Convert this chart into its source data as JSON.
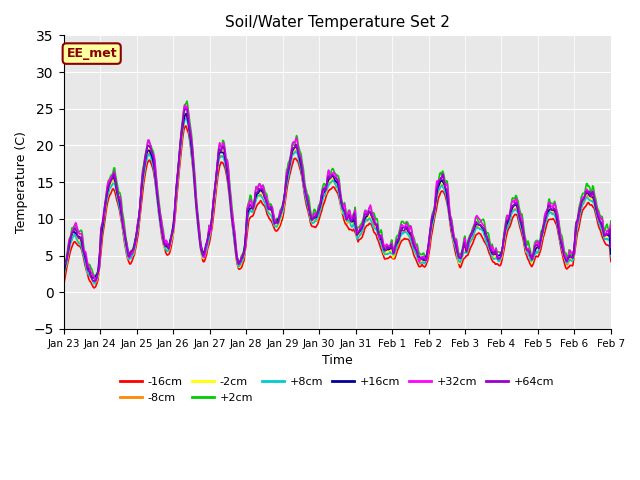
{
  "title": "Soil/Water Temperature Set 2",
  "xlabel": "Time",
  "ylabel": "Temperature (C)",
  "ylim": [
    -5,
    35
  ],
  "yticks": [
    -5,
    0,
    5,
    10,
    15,
    20,
    25,
    30,
    35
  ],
  "x_labels": [
    "Jan 23",
    "Jan 24",
    "Jan 25",
    "Jan 26",
    "Jan 27",
    "Jan 28",
    "Jan 29",
    "Jan 30",
    "Jan 31",
    "Feb 1",
    "Feb 2",
    "Feb 3",
    "Feb 4",
    "Feb 5",
    "Feb 6",
    "Feb 7"
  ],
  "bg_color": "#e8e8e8",
  "annotation_text": "EE_met",
  "annotation_bg": "#ffffa0",
  "annotation_border": "#8b0000",
  "series_order": [
    "-16cm",
    "-8cm",
    "-2cm",
    "+2cm",
    "+8cm",
    "+16cm",
    "+32cm",
    "+64cm"
  ],
  "series_colors": {
    "-16cm": "#ff0000",
    "-8cm": "#ff8800",
    "-2cm": "#ffff00",
    "+2cm": "#00cc00",
    "+8cm": "#00cccc",
    "+16cm": "#000099",
    "+32cm": "#ff00ff",
    "+64cm": "#9900cc"
  },
  "lw": 1.2,
  "figsize": [
    6.4,
    4.8
  ],
  "dpi": 100
}
